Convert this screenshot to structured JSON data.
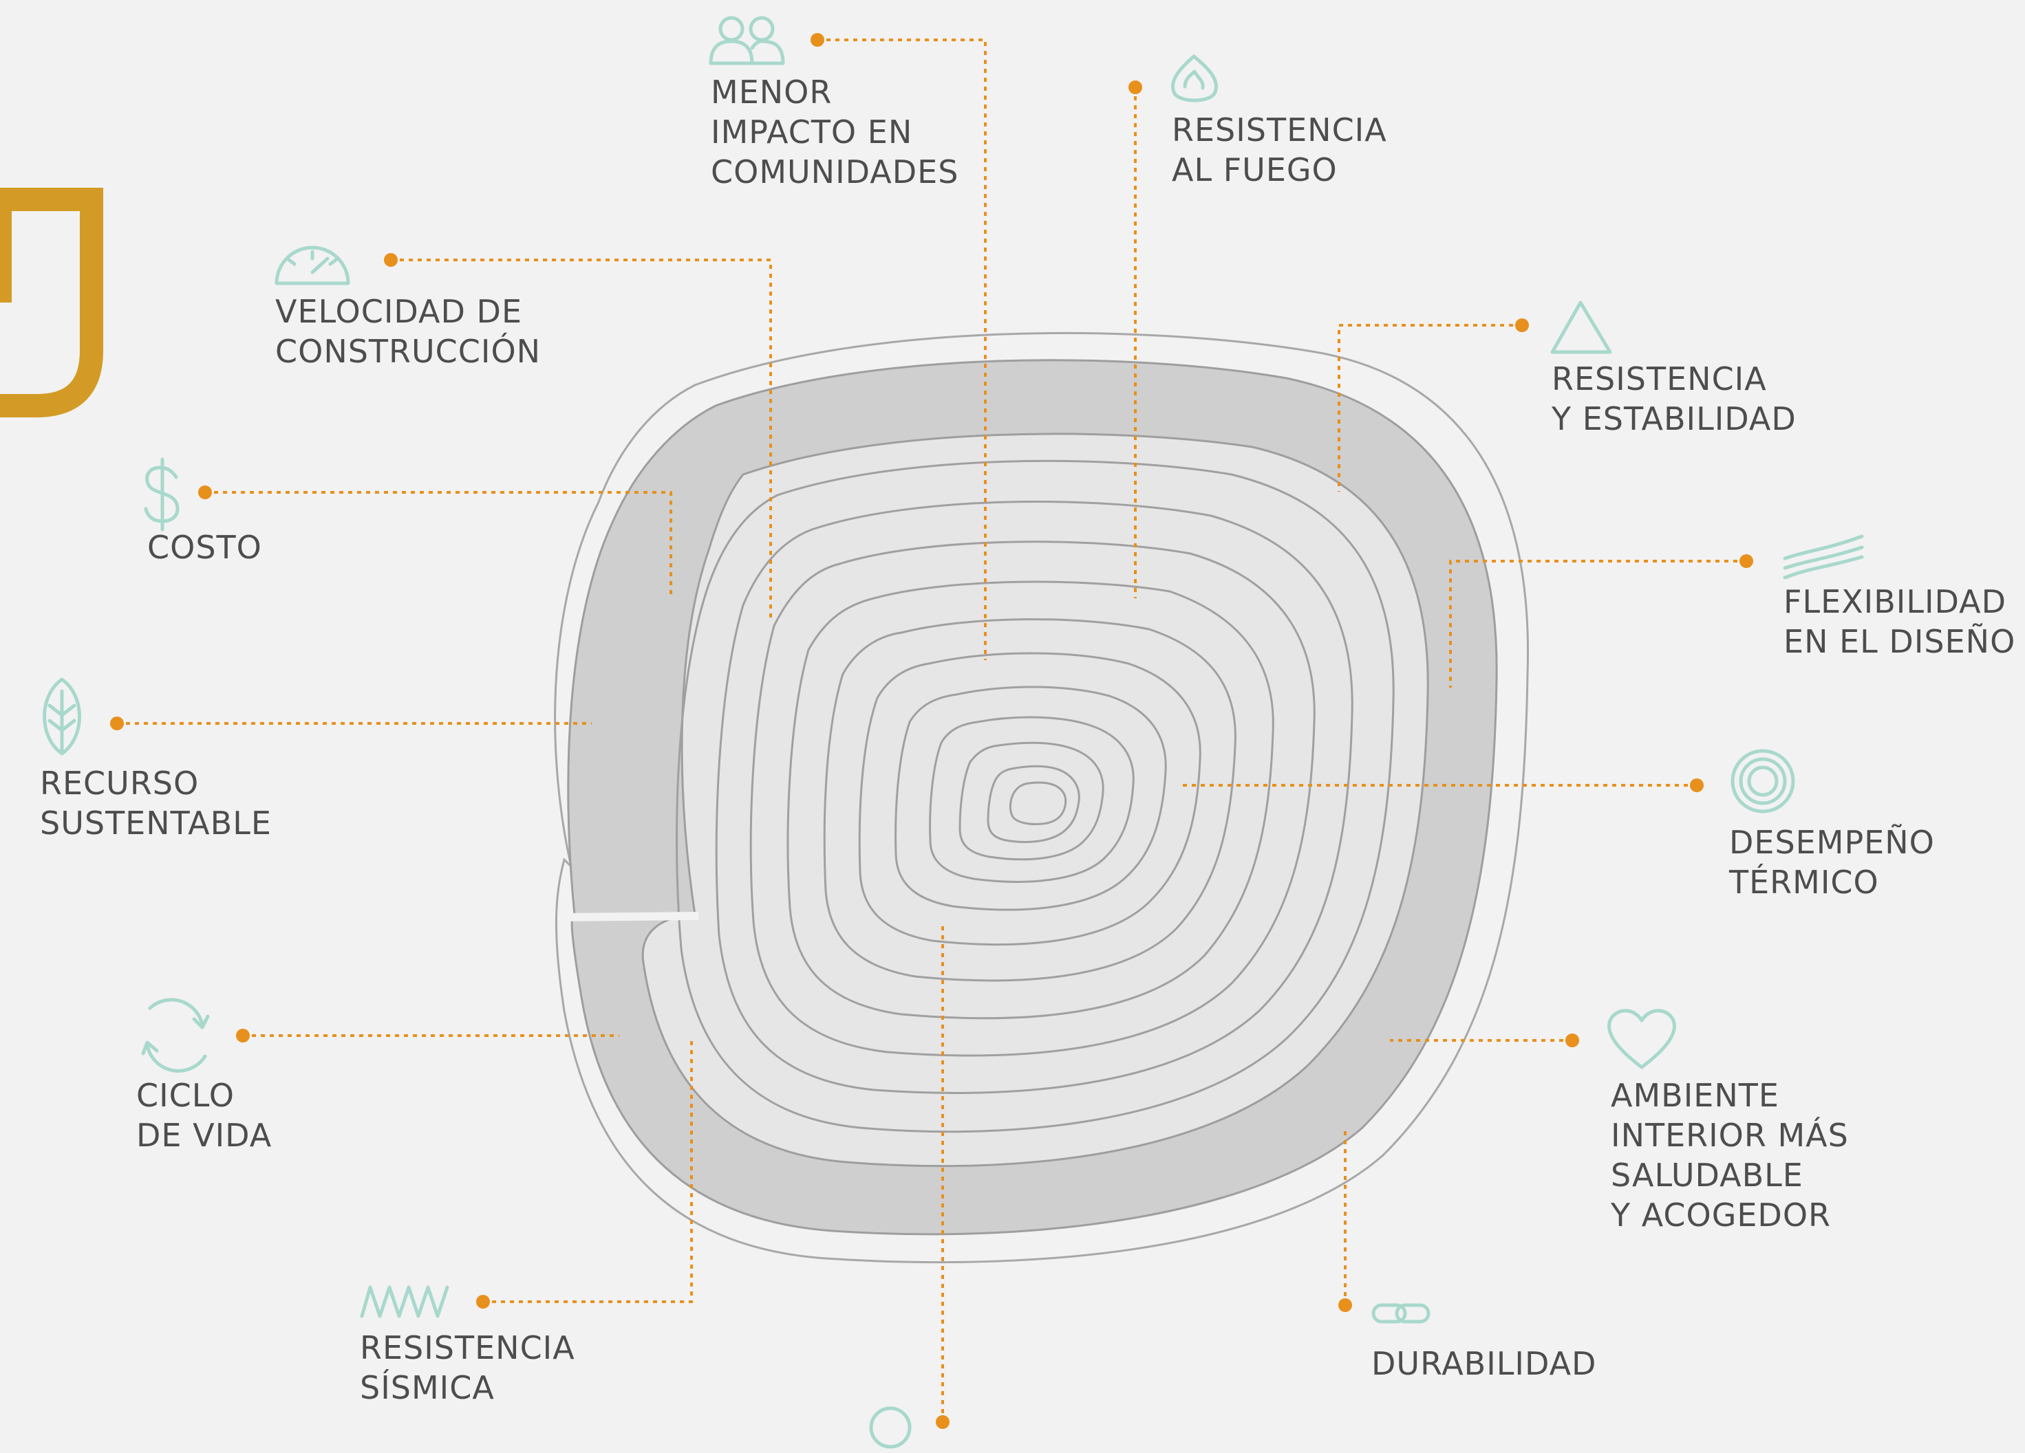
{
  "colors": {
    "background": "#f2f2f2",
    "accent_orange": "#e8901c",
    "icon_teal": "#a8d8cc",
    "logo_gold": "#d39b25",
    "ring_dark": "#cfcfcf",
    "ring_light": "#e8e8e8",
    "ring_line": "#9e9e9e",
    "text": "#4d4d4d"
  },
  "labels": {
    "menor_impacto": [
      "MENOR",
      "IMPACTO EN",
      "COMUNIDADES"
    ],
    "resistencia_fuego": [
      "RESISTENCIA",
      "AL FUEGO"
    ],
    "velocidad": [
      "VELOCIDAD DE",
      "CONSTRUCCIÓN"
    ],
    "resistencia_estabilidad": [
      "RESISTENCIA",
      "Y ESTABILIDAD"
    ],
    "costo": [
      "COSTO"
    ],
    "flexibilidad": [
      "FLEXIBILIDAD",
      "EN EL DISEÑO"
    ],
    "recurso": [
      "RECURSO",
      "SUSTENTABLE"
    ],
    "desempeno": [
      "DESEMPEÑO",
      "TÉRMICO"
    ],
    "ciclo": [
      "CICLO",
      "DE VIDA"
    ],
    "ambiente": [
      "AMBIENTE",
      "INTERIOR MÁS",
      "SALUDABLE",
      "Y ACOGEDOR"
    ],
    "sismica": [
      "RESISTENCIA",
      "SÍSMICA"
    ],
    "durabilidad": [
      "DURABILIDAD"
    ]
  },
  "icons": {
    "menor_impacto": "people-icon",
    "resistencia_fuego": "flame-icon",
    "velocidad": "speedometer-icon",
    "resistencia_estabilidad": "triangle-icon",
    "costo": "dollar-icon",
    "flexibilidad": "waves-icon",
    "recurso": "leaf-icon",
    "desempeno": "concentric-circles-icon",
    "ciclo": "cycle-icon",
    "ambiente": "heart-icon",
    "sismica": "zigzag-icon",
    "durabilidad": "chain-link-icon",
    "bottom": "circle-icon"
  }
}
